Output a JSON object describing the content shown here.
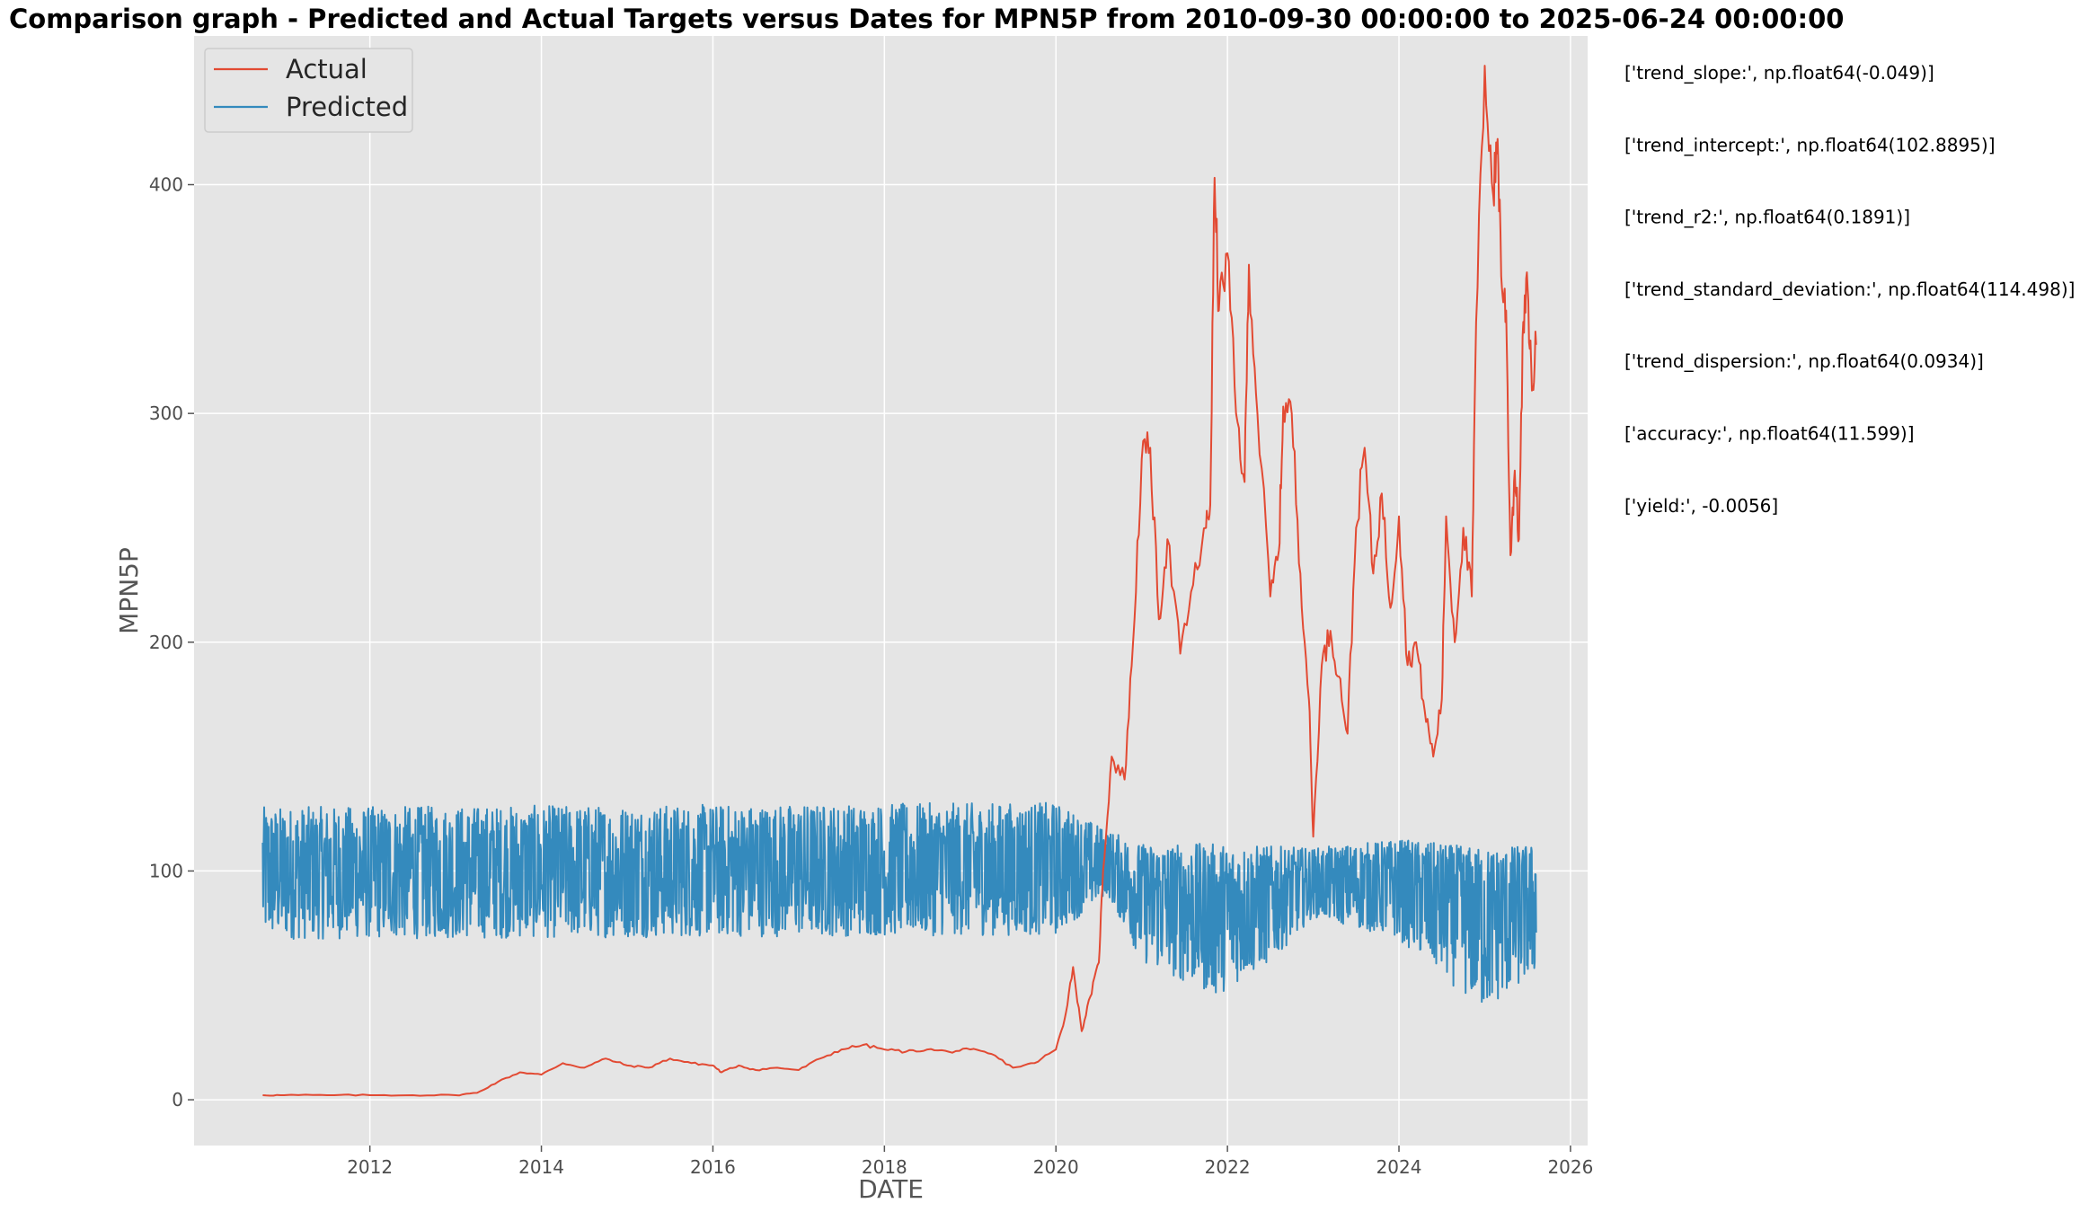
{
  "chart_data": {
    "type": "line",
    "title": "Comparison graph - Predicted and Actual Targets versus Dates for MPN5P from 2010-09-30 00:00:00 to 2025-06-24 00:00:00",
    "xlabel": "DATE",
    "ylabel": "MPN5P",
    "xlim": [
      2009.95,
      2026.2
    ],
    "ylim": [
      -20,
      465
    ],
    "x_ticks": [
      2012,
      2014,
      2016,
      2018,
      2020,
      2022,
      2024,
      2026
    ],
    "x_tick_labels": [
      "2012",
      "2014",
      "2016",
      "2018",
      "2020",
      "2022",
      "2024",
      "2026"
    ],
    "y_ticks": [
      0,
      100,
      200,
      300,
      400
    ],
    "y_tick_labels": [
      "0",
      "100",
      "200",
      "300",
      "400"
    ],
    "grid": true,
    "legend_position": "upper-left",
    "series": [
      {
        "name": "Actual",
        "color": "#e24a33",
        "points": [
          [
            2010.75,
            2
          ],
          [
            2011.0,
            2
          ],
          [
            2011.5,
            2
          ],
          [
            2012.0,
            2
          ],
          [
            2012.5,
            2
          ],
          [
            2013.0,
            2
          ],
          [
            2013.25,
            3
          ],
          [
            2013.5,
            8
          ],
          [
            2013.75,
            12
          ],
          [
            2014.0,
            11
          ],
          [
            2014.25,
            16
          ],
          [
            2014.5,
            14
          ],
          [
            2014.75,
            18
          ],
          [
            2015.0,
            15
          ],
          [
            2015.25,
            14
          ],
          [
            2015.5,
            18
          ],
          [
            2015.75,
            16
          ],
          [
            2016.0,
            15
          ],
          [
            2016.1,
            12
          ],
          [
            2016.3,
            15
          ],
          [
            2016.5,
            13
          ],
          [
            2016.75,
            14
          ],
          [
            2017.0,
            13
          ],
          [
            2017.25,
            18
          ],
          [
            2017.5,
            22
          ],
          [
            2017.75,
            24
          ],
          [
            2018.0,
            22
          ],
          [
            2018.25,
            21
          ],
          [
            2018.5,
            22
          ],
          [
            2018.75,
            21
          ],
          [
            2019.0,
            22
          ],
          [
            2019.25,
            20
          ],
          [
            2019.5,
            14
          ],
          [
            2019.75,
            16
          ],
          [
            2020.0,
            22
          ],
          [
            2020.1,
            35
          ],
          [
            2020.2,
            58
          ],
          [
            2020.3,
            30
          ],
          [
            2020.4,
            45
          ],
          [
            2020.5,
            60
          ],
          [
            2020.55,
            100
          ],
          [
            2020.65,
            150
          ],
          [
            2020.8,
            140
          ],
          [
            2020.9,
            200
          ],
          [
            2021.0,
            280
          ],
          [
            2021.1,
            285
          ],
          [
            2021.2,
            210
          ],
          [
            2021.3,
            245
          ],
          [
            2021.45,
            195
          ],
          [
            2021.6,
            225
          ],
          [
            2021.75,
            250
          ],
          [
            2021.8,
            260
          ],
          [
            2021.85,
            403
          ],
          [
            2021.9,
            345
          ],
          [
            2022.0,
            370
          ],
          [
            2022.1,
            300
          ],
          [
            2022.2,
            270
          ],
          [
            2022.25,
            365
          ],
          [
            2022.35,
            300
          ],
          [
            2022.5,
            220
          ],
          [
            2022.6,
            240
          ],
          [
            2022.65,
            303
          ],
          [
            2022.75,
            300
          ],
          [
            2022.85,
            230
          ],
          [
            2022.95,
            175
          ],
          [
            2023.0,
            115
          ],
          [
            2023.1,
            190
          ],
          [
            2023.2,
            205
          ],
          [
            2023.3,
            185
          ],
          [
            2023.4,
            160
          ],
          [
            2023.5,
            250
          ],
          [
            2023.6,
            285
          ],
          [
            2023.7,
            230
          ],
          [
            2023.8,
            265
          ],
          [
            2023.9,
            215
          ],
          [
            2024.0,
            255
          ],
          [
            2024.1,
            190
          ],
          [
            2024.2,
            200
          ],
          [
            2024.3,
            170
          ],
          [
            2024.4,
            150
          ],
          [
            2024.5,
            175
          ],
          [
            2024.55,
            255
          ],
          [
            2024.65,
            200
          ],
          [
            2024.75,
            250
          ],
          [
            2024.85,
            220
          ],
          [
            2024.9,
            340
          ],
          [
            2025.0,
            452
          ],
          [
            2025.1,
            395
          ],
          [
            2025.15,
            420
          ],
          [
            2025.2,
            355
          ],
          [
            2025.25,
            345
          ],
          [
            2025.3,
            238
          ],
          [
            2025.35,
            275
          ],
          [
            2025.4,
            245
          ],
          [
            2025.45,
            340
          ],
          [
            2025.5,
            355
          ],
          [
            2025.55,
            310
          ],
          [
            2025.6,
            330
          ]
        ]
      },
      {
        "name": "Predicted",
        "color": "#348abd",
        "style": "noisy-band",
        "x_range": [
          2010.75,
          2025.6
        ],
        "center": [
          [
            2010.75,
            100
          ],
          [
            2020.0,
            102
          ],
          [
            2020.6,
            102
          ],
          [
            2021.0,
            92
          ],
          [
            2022.0,
            85
          ],
          [
            2023.0,
            95
          ],
          [
            2024.0,
            95
          ],
          [
            2025.0,
            85
          ],
          [
            2025.6,
            85
          ]
        ],
        "low": [
          [
            2010.75,
            70
          ],
          [
            2020.0,
            72
          ],
          [
            2020.6,
            90
          ],
          [
            2021.0,
            60
          ],
          [
            2021.85,
            45
          ],
          [
            2022.5,
            60
          ],
          [
            2023.0,
            80
          ],
          [
            2024.0,
            70
          ],
          [
            2025.0,
            38
          ],
          [
            2025.6,
            55
          ]
        ],
        "high": [
          [
            2010.75,
            128
          ],
          [
            2020.0,
            130
          ],
          [
            2020.6,
            118
          ],
          [
            2021.0,
            112
          ],
          [
            2022.0,
            112
          ],
          [
            2023.0,
            110
          ],
          [
            2024.0,
            114
          ],
          [
            2025.0,
            110
          ],
          [
            2025.6,
            112
          ]
        ]
      }
    ],
    "annotations": [
      "['trend_slope:', np.float64(-0.049)]",
      "['trend_intercept:', np.float64(102.8895)]",
      "['trend_r2:', np.float64(0.1891)]",
      "['trend_standard_deviation:', np.float64(114.498)]",
      "['trend_dispersion:', np.float64(0.0934)]",
      "['accuracy:', np.float64(11.599)]",
      "['yield:', -0.0056]"
    ]
  }
}
